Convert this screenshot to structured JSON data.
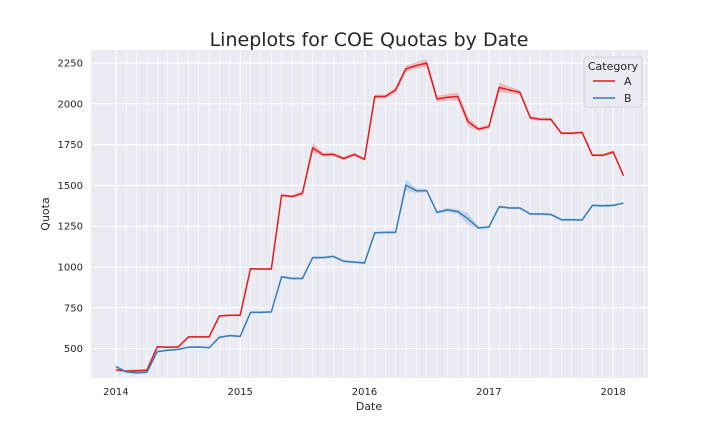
{
  "chart_data": {
    "type": "line",
    "title": "Lineplots for COE Quotas by Date",
    "xlabel": "Date",
    "ylabel": "Quota",
    "x_tick_labels": [
      "2014",
      "2015",
      "2016",
      "2017",
      "2018"
    ],
    "x_tick_values": [
      2014,
      2015,
      2016,
      2017,
      2018
    ],
    "y_tick_values": [
      500,
      750,
      1000,
      1250,
      1500,
      1750,
      2000,
      2250
    ],
    "xlim": [
      2013.8,
      2018.28
    ],
    "ylim": [
      320,
      2330
    ],
    "grid": true,
    "legend": {
      "title": "Category",
      "placement": "top-right"
    },
    "colors": {
      "background": "#EAEAF2",
      "grid": "#FFFFFF",
      "A": "#E41A1C",
      "B": "#377EB8"
    },
    "x": [
      2014.0,
      2014.083,
      2014.167,
      2014.25,
      2014.333,
      2014.417,
      2014.5,
      2014.583,
      2014.667,
      2014.75,
      2014.833,
      2014.917,
      2015.0,
      2015.083,
      2015.167,
      2015.25,
      2015.333,
      2015.417,
      2015.5,
      2015.583,
      2015.667,
      2015.75,
      2015.833,
      2015.917,
      2016.0,
      2016.083,
      2016.167,
      2016.25,
      2016.333,
      2016.417,
      2016.5,
      2016.583,
      2016.667,
      2016.75,
      2016.833,
      2016.917,
      2017.0,
      2017.083,
      2017.167,
      2017.25,
      2017.333,
      2017.417,
      2017.5,
      2017.583,
      2017.667,
      2017.75,
      2017.833,
      2017.917,
      2018.0,
      2018.083
    ],
    "series": [
      {
        "name": "A",
        "values": [
          370,
          362,
          365,
          368,
          512,
          508,
          510,
          572,
          572,
          572,
          700,
          705,
          705,
          990,
          988,
          988,
          1440,
          1432,
          1452,
          1730,
          1688,
          1690,
          1665,
          1690,
          1660,
          2045,
          2045,
          2085,
          2215,
          2235,
          2250,
          2030,
          2040,
          2045,
          1890,
          1845,
          1860,
          2100,
          2085,
          2070,
          1915,
          1905,
          1905,
          1820,
          1820,
          1825,
          1685,
          1685,
          1705,
          1560
        ],
        "band": [
          0,
          8,
          8,
          8,
          6,
          6,
          6,
          6,
          6,
          6,
          6,
          6,
          6,
          6,
          6,
          6,
          8,
          8,
          15,
          30,
          12,
          12,
          10,
          12,
          10,
          12,
          12,
          18,
          20,
          20,
          25,
          20,
          20,
          25,
          30,
          12,
          12,
          30,
          20,
          15,
          12,
          10,
          10,
          8,
          8,
          8,
          8,
          8,
          10,
          0
        ]
      },
      {
        "name": "B",
        "values": [
          390,
          358,
          352,
          355,
          482,
          490,
          495,
          508,
          510,
          505,
          570,
          580,
          575,
          722,
          722,
          725,
          940,
          930,
          930,
          1058,
          1058,
          1065,
          1035,
          1030,
          1025,
          1210,
          1212,
          1212,
          1502,
          1468,
          1468,
          1335,
          1350,
          1340,
          1295,
          1240,
          1245,
          1370,
          1362,
          1362,
          1325,
          1325,
          1322,
          1290,
          1290,
          1288,
          1378,
          1375,
          1378,
          1392
        ],
        "band": [
          0,
          8,
          8,
          8,
          6,
          6,
          6,
          6,
          6,
          6,
          6,
          6,
          6,
          6,
          6,
          6,
          8,
          8,
          8,
          8,
          8,
          8,
          8,
          8,
          8,
          8,
          8,
          8,
          35,
          15,
          10,
          10,
          12,
          15,
          35,
          8,
          8,
          8,
          8,
          8,
          8,
          8,
          8,
          8,
          8,
          8,
          8,
          8,
          8,
          0
        ]
      }
    ]
  }
}
